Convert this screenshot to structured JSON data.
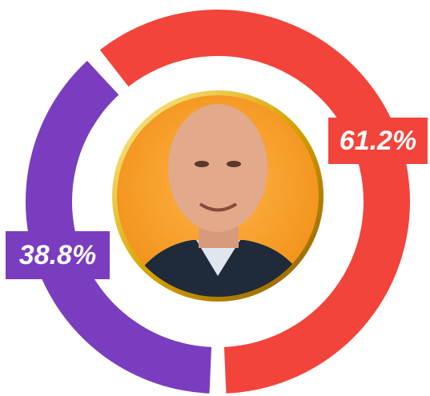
{
  "chart_data": {
    "type": "donut",
    "values": [
      38.8,
      61.2
    ],
    "value_labels": [
      "38.8%",
      "61.2%"
    ],
    "colors": [
      "#7a3dbf",
      "#f2443b"
    ]
  }
}
